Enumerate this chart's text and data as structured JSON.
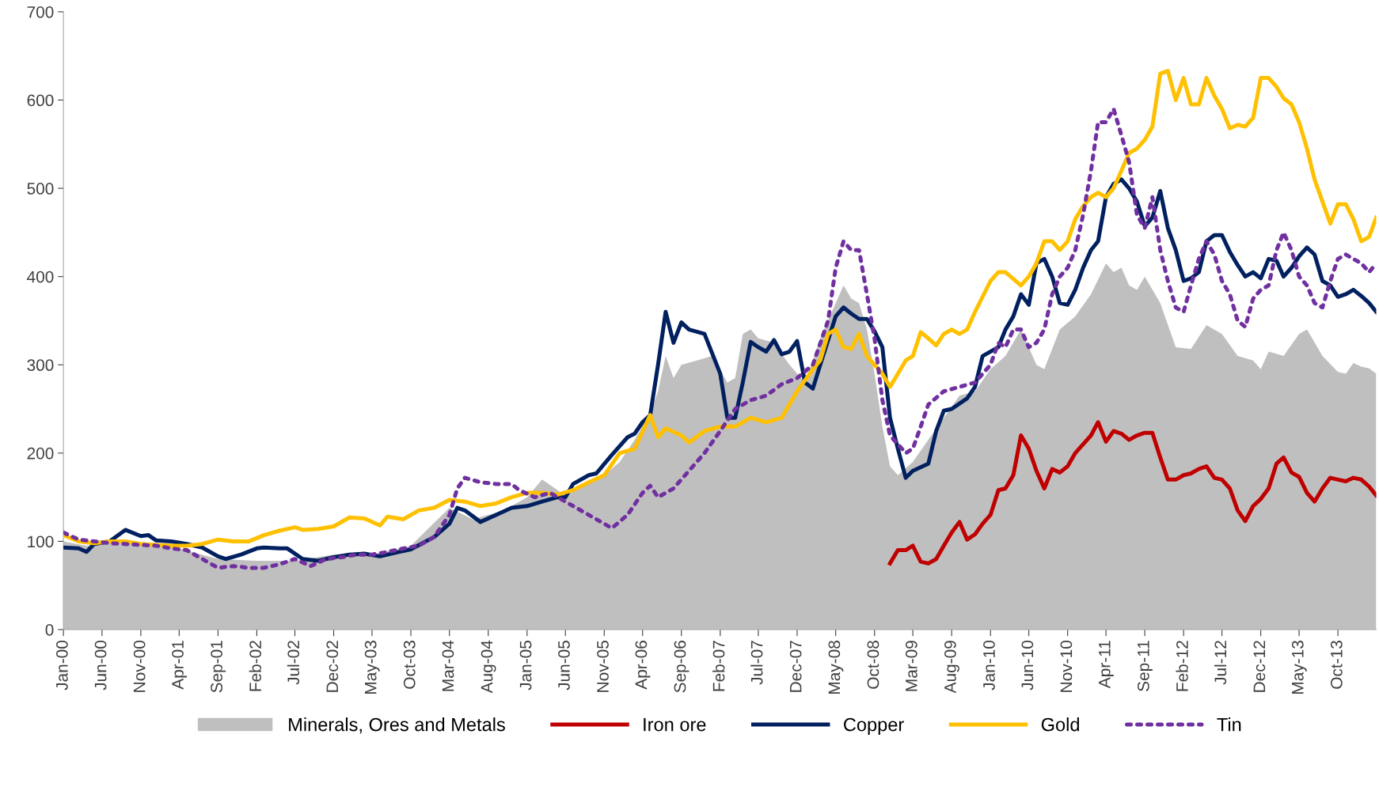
{
  "chart_data": {
    "type": "line",
    "xlim": [
      "2000-01",
      "2014-03"
    ],
    "ylim": [
      0,
      700
    ],
    "yticks": [
      0,
      100,
      200,
      300,
      400,
      500,
      600,
      700
    ],
    "xticks": [
      {
        "value": "2000-01",
        "label": "Jan-00"
      },
      {
        "value": "2000-06",
        "label": "Jun-00"
      },
      {
        "value": "2000-11",
        "label": "Nov-00"
      },
      {
        "value": "2001-04",
        "label": "Apr-01"
      },
      {
        "value": "2001-09",
        "label": "Sep-01"
      },
      {
        "value": "2002-02",
        "label": "Feb-02"
      },
      {
        "value": "2002-07",
        "label": "Jul-02"
      },
      {
        "value": "2002-12",
        "label": "Dec-02"
      },
      {
        "value": "2003-05",
        "label": "May-03"
      },
      {
        "value": "2003-10",
        "label": "Oct-03"
      },
      {
        "value": "2004-03",
        "label": "Mar-04"
      },
      {
        "value": "2004-08",
        "label": "Aug-04"
      },
      {
        "value": "2005-01",
        "label": "Jan-05"
      },
      {
        "value": "2005-06",
        "label": "Jun-05"
      },
      {
        "value": "2005-11",
        "label": "Nov-05"
      },
      {
        "value": "2006-04",
        "label": "Apr-06"
      },
      {
        "value": "2006-09",
        "label": "Sep-06"
      },
      {
        "value": "2007-02",
        "label": "Feb-07"
      },
      {
        "value": "2007-07",
        "label": "Jul-07"
      },
      {
        "value": "2007-12",
        "label": "Dec-07"
      },
      {
        "value": "2008-05",
        "label": "May-08"
      },
      {
        "value": "2008-10",
        "label": "Oct-08"
      },
      {
        "value": "2009-03",
        "label": "Mar-09"
      },
      {
        "value": "2009-08",
        "label": "Aug-09"
      },
      {
        "value": "2010-01",
        "label": "Jan-10"
      },
      {
        "value": "2010-06",
        "label": "Jun-10"
      },
      {
        "value": "2010-11",
        "label": "Nov-10"
      },
      {
        "value": "2011-04",
        "label": "Apr-11"
      },
      {
        "value": "2011-09",
        "label": "Sep-11"
      },
      {
        "value": "2012-02",
        "label": "Feb-12"
      },
      {
        "value": "2012-07",
        "label": "Jul-12"
      },
      {
        "value": "2012-12",
        "label": "Dec-12"
      },
      {
        "value": "2013-05",
        "label": "May-13"
      },
      {
        "value": "2013-10",
        "label": "Oct-13"
      }
    ],
    "grid": false,
    "legend": "bottom",
    "series": [
      {
        "name": "Minerals, Ores and Metals",
        "type": "area",
        "color": "#bfbfbf",
        "x": [
          "2000-01",
          "2000-04",
          "2000-07",
          "2000-11",
          "2001-04",
          "2001-09",
          "2002-02",
          "2002-07",
          "2002-12",
          "2003-05",
          "2003-10",
          "2004-03",
          "2004-06",
          "2004-10",
          "2005-01",
          "2005-03",
          "2005-06",
          "2005-09",
          "2005-11",
          "2006-01",
          "2006-03",
          "2006-05",
          "2006-06",
          "2006-07",
          "2006-08",
          "2006-09",
          "2006-11",
          "2007-01",
          "2007-03",
          "2007-04",
          "2007-05",
          "2007-06",
          "2007-07",
          "2007-09",
          "2007-11",
          "2008-01",
          "2008-03",
          "2008-05",
          "2008-06",
          "2008-07",
          "2008-08",
          "2008-09",
          "2008-10",
          "2008-11",
          "2008-12",
          "2009-01",
          "2009-03",
          "2009-05",
          "2009-07",
          "2009-09",
          "2009-11",
          "2010-01",
          "2010-03",
          "2010-05",
          "2010-07",
          "2010-08",
          "2010-10",
          "2010-12",
          "2011-02",
          "2011-04",
          "2011-05",
          "2011-06",
          "2011-07",
          "2011-08",
          "2011-09",
          "2011-11",
          "2012-01",
          "2012-03",
          "2012-05",
          "2012-07",
          "2012-09",
          "2012-11",
          "2012-12",
          "2013-01",
          "2013-03",
          "2013-05",
          "2013-06",
          "2013-08",
          "2013-10",
          "2013-11",
          "2013-12",
          "2014-01",
          "2014-02",
          "2014-03"
        ],
        "values": [
          100,
          95,
          98,
          97,
          92,
          80,
          78,
          78,
          85,
          85,
          95,
          138,
          125,
          135,
          150,
          170,
          152,
          165,
          175,
          190,
          215,
          245,
          270,
          310,
          285,
          300,
          305,
          310,
          280,
          285,
          335,
          340,
          330,
          325,
          300,
          280,
          330,
          370,
          390,
          375,
          370,
          340,
          290,
          230,
          185,
          175,
          190,
          215,
          240,
          265,
          270,
          295,
          310,
          340,
          300,
          295,
          340,
          355,
          380,
          415,
          405,
          410,
          390,
          385,
          400,
          370,
          320,
          318,
          345,
          335,
          310,
          305,
          295,
          315,
          310,
          335,
          340,
          310,
          292,
          290,
          302,
          298,
          296,
          290
        ]
      },
      {
        "name": "Iron ore",
        "color": "#c00000",
        "line_style": "solid",
        "x": [
          "2008-12",
          "2009-01",
          "2009-02",
          "2009-03",
          "2009-04",
          "2009-05",
          "2009-06",
          "2009-07",
          "2009-08",
          "2009-09",
          "2009-10",
          "2009-11",
          "2009-12",
          "2010-01",
          "2010-02",
          "2010-03",
          "2010-04",
          "2010-05",
          "2010-06",
          "2010-07",
          "2010-08",
          "2010-09",
          "2010-10",
          "2010-11",
          "2010-12",
          "2011-01",
          "2011-02",
          "2011-03",
          "2011-04",
          "2011-05",
          "2011-06",
          "2011-07",
          "2011-08",
          "2011-09",
          "2011-10",
          "2011-11",
          "2011-12",
          "2012-01",
          "2012-02",
          "2012-03",
          "2012-04",
          "2012-05",
          "2012-06",
          "2012-07",
          "2012-08",
          "2012-09",
          "2012-10",
          "2012-11",
          "2012-12",
          "2013-01",
          "2013-02",
          "2013-03",
          "2013-04",
          "2013-05",
          "2013-06",
          "2013-07",
          "2013-08",
          "2013-09",
          "2013-10",
          "2013-11",
          "2013-12",
          "2014-01",
          "2014-02",
          "2014-03"
        ],
        "values": [
          75,
          90,
          90,
          95,
          77,
          75,
          80,
          95,
          110,
          122,
          102,
          108,
          120,
          130,
          158,
          160,
          175,
          220,
          205,
          180,
          160,
          182,
          178,
          185,
          200,
          210,
          220,
          235,
          213,
          225,
          222,
          215,
          220,
          223,
          223,
          195,
          170,
          170,
          175,
          177,
          182,
          185,
          172,
          170,
          160,
          135,
          123,
          140,
          148,
          160,
          188,
          195,
          178,
          173,
          155,
          145,
          160,
          172,
          170,
          168,
          172,
          170,
          162,
          152
        ]
      },
      {
        "name": "Copper",
        "color": "#002060",
        "line_style": "solid",
        "x": [
          "2000-01",
          "2000-03",
          "2000-04",
          "2000-05",
          "2000-07",
          "2000-09",
          "2000-11",
          "2000-12",
          "2001-01",
          "2001-03",
          "2001-05",
          "2001-07",
          "2001-09",
          "2001-10",
          "2001-12",
          "2002-02",
          "2002-03",
          "2002-05",
          "2002-06",
          "2002-08",
          "2002-10",
          "2002-12",
          "2003-02",
          "2003-04",
          "2003-06",
          "2003-08",
          "2003-10",
          "2004-01",
          "2004-03",
          "2004-04",
          "2004-05",
          "2004-07",
          "2004-09",
          "2004-11",
          "2005-01",
          "2005-03",
          "2005-05",
          "2005-06",
          "2005-07",
          "2005-09",
          "2005-10",
          "2005-12",
          "2006-02",
          "2006-03",
          "2006-04",
          "2006-05",
          "2006-06",
          "2006-07",
          "2006-08",
          "2006-09",
          "2006-10",
          "2006-12",
          "2007-02",
          "2007-03",
          "2007-04",
          "2007-05",
          "2007-06",
          "2007-07",
          "2007-08",
          "2007-09",
          "2007-10",
          "2007-11",
          "2007-12",
          "2008-01",
          "2008-02",
          "2008-03",
          "2008-05",
          "2008-06",
          "2008-07",
          "2008-08",
          "2008-09",
          "2008-10",
          "2008-11",
          "2008-12",
          "2009-01",
          "2009-02",
          "2009-03",
          "2009-05",
          "2009-06",
          "2009-07",
          "2009-08",
          "2009-10",
          "2009-11",
          "2009-12",
          "2010-02",
          "2010-03",
          "2010-04",
          "2010-05",
          "2010-06",
          "2010-07",
          "2010-08",
          "2010-09",
          "2010-10",
          "2010-11",
          "2010-12",
          "2011-01",
          "2011-02",
          "2011-03",
          "2011-04",
          "2011-05",
          "2011-06",
          "2011-07",
          "2011-08",
          "2011-09",
          "2011-10",
          "2011-11",
          "2011-12",
          "2012-01",
          "2012-02",
          "2012-03",
          "2012-04",
          "2012-05",
          "2012-06",
          "2012-07",
          "2012-08",
          "2012-09",
          "2012-10",
          "2012-11",
          "2012-12",
          "2013-01",
          "2013-02",
          "2013-03",
          "2013-04",
          "2013-05",
          "2013-06",
          "2013-07",
          "2013-08",
          "2013-09",
          "2013-10",
          "2013-11",
          "2013-12",
          "2014-01",
          "2014-02",
          "2014-03"
        ],
        "values": [
          93,
          92,
          88,
          97,
          100,
          113,
          106,
          107,
          101,
          100,
          97,
          93,
          83,
          80,
          85,
          92,
          93,
          92,
          92,
          80,
          78,
          82,
          85,
          86,
          83,
          87,
          91,
          105,
          120,
          138,
          135,
          122,
          130,
          138,
          140,
          145,
          150,
          150,
          165,
          175,
          177,
          198,
          218,
          222,
          235,
          243,
          300,
          360,
          325,
          348,
          340,
          335,
          290,
          240,
          240,
          280,
          326,
          320,
          315,
          328,
          312,
          315,
          327,
          280,
          273,
          300,
          355,
          365,
          358,
          352,
          352,
          338,
          320,
          240,
          205,
          172,
          180,
          188,
          225,
          248,
          250,
          262,
          275,
          310,
          320,
          340,
          355,
          380,
          368,
          415,
          420,
          400,
          370,
          368,
          385,
          410,
          430,
          440,
          490,
          505,
          510,
          500,
          485,
          457,
          467,
          497,
          455,
          430,
          395,
          398,
          405,
          440,
          447,
          447,
          428,
          413,
          400,
          405,
          398,
          420,
          418,
          400,
          410,
          423,
          433,
          425,
          395,
          390,
          377,
          380,
          385,
          378,
          370,
          360
        ]
      },
      {
        "name": "Gold",
        "color": "#ffc000",
        "line_style": "solid",
        "x": [
          "2000-01",
          "2000-03",
          "2000-05",
          "2000-07",
          "2000-09",
          "2000-11",
          "2001-01",
          "2001-03",
          "2001-05",
          "2001-07",
          "2001-09",
          "2001-11",
          "2002-01",
          "2002-03",
          "2002-05",
          "2002-07",
          "2002-08",
          "2002-10",
          "2002-12",
          "2003-02",
          "2003-04",
          "2003-06",
          "2003-07",
          "2003-09",
          "2003-11",
          "2004-01",
          "2004-03",
          "2004-05",
          "2004-07",
          "2004-09",
          "2004-11",
          "2005-01",
          "2005-03",
          "2005-05",
          "2005-07",
          "2005-09",
          "2005-11",
          "2006-01",
          "2006-03",
          "2006-05",
          "2006-06",
          "2006-07",
          "2006-09",
          "2006-10",
          "2006-12",
          "2007-02",
          "2007-04",
          "2007-06",
          "2007-08",
          "2007-10",
          "2007-12",
          "2008-02",
          "2008-03",
          "2008-04",
          "2008-05",
          "2008-06",
          "2008-07",
          "2008-08",
          "2008-09",
          "2008-10",
          "2008-11",
          "2008-12",
          "2009-01",
          "2009-02",
          "2009-03",
          "2009-04",
          "2009-05",
          "2009-06",
          "2009-07",
          "2009-08",
          "2009-09",
          "2009-10",
          "2009-11",
          "2010-01",
          "2010-02",
          "2010-03",
          "2010-05",
          "2010-06",
          "2010-07",
          "2010-08",
          "2010-09",
          "2010-10",
          "2010-11",
          "2010-12",
          "2011-01",
          "2011-02",
          "2011-03",
          "2011-04",
          "2011-05",
          "2011-06",
          "2011-07",
          "2011-08",
          "2011-09",
          "2011-10",
          "2011-11",
          "2011-12",
          "2012-01",
          "2012-02",
          "2012-03",
          "2012-04",
          "2012-05",
          "2012-06",
          "2012-07",
          "2012-08",
          "2012-09",
          "2012-10",
          "2012-11",
          "2012-12",
          "2013-01",
          "2013-02",
          "2013-03",
          "2013-04",
          "2013-05",
          "2013-06",
          "2013-07",
          "2013-08",
          "2013-09",
          "2013-10",
          "2013-11",
          "2013-12",
          "2014-01",
          "2014-02",
          "2014-03"
        ],
        "values": [
          107,
          100,
          98,
          100,
          100,
          97,
          96,
          95,
          95,
          97,
          102,
          100,
          100,
          107,
          112,
          116,
          113,
          114,
          117,
          127,
          126,
          118,
          128,
          125,
          135,
          138,
          147,
          145,
          140,
          143,
          150,
          155,
          155,
          153,
          158,
          167,
          175,
          200,
          205,
          243,
          218,
          228,
          220,
          212,
          225,
          230,
          230,
          240,
          235,
          240,
          270,
          295,
          305,
          335,
          340,
          320,
          318,
          335,
          310,
          300,
          290,
          275,
          290,
          305,
          310,
          337,
          330,
          322,
          335,
          340,
          335,
          340,
          360,
          395,
          405,
          405,
          390,
          400,
          415,
          440,
          440,
          430,
          440,
          465,
          480,
          490,
          495,
          490,
          500,
          520,
          540,
          545,
          555,
          570,
          630,
          633,
          600,
          625,
          595,
          595,
          625,
          605,
          590,
          568,
          572,
          570,
          580,
          625,
          625,
          615,
          602,
          595,
          575,
          545,
          510,
          485,
          460,
          482,
          482,
          465,
          440,
          445,
          467
        ]
      },
      {
        "name": "Tin",
        "color": "#7030a0",
        "line_style": "dotted",
        "x": [
          "2000-01",
          "2000-03",
          "2000-05",
          "2000-07",
          "2000-09",
          "2000-11",
          "2001-01",
          "2001-03",
          "2001-05",
          "2001-07",
          "2001-09",
          "2001-11",
          "2002-01",
          "2002-03",
          "2002-05",
          "2002-07",
          "2002-09",
          "2002-11",
          "2003-01",
          "2003-03",
          "2003-05",
          "2003-07",
          "2003-09",
          "2003-11",
          "2004-01",
          "2004-03",
          "2004-04",
          "2004-05",
          "2004-07",
          "2004-09",
          "2004-11",
          "2004-12",
          "2005-02",
          "2005-04",
          "2005-06",
          "2005-08",
          "2005-10",
          "2005-12",
          "2006-02",
          "2006-04",
          "2006-05",
          "2006-06",
          "2006-08",
          "2006-10",
          "2006-12",
          "2007-02",
          "2007-04",
          "2007-06",
          "2007-08",
          "2007-10",
          "2007-12",
          "2008-02",
          "2008-04",
          "2008-05",
          "2008-06",
          "2008-07",
          "2008-08",
          "2008-09",
          "2008-10",
          "2008-11",
          "2008-12",
          "2009-01",
          "2009-02",
          "2009-03",
          "2009-04",
          "2009-05",
          "2009-07",
          "2009-09",
          "2009-11",
          "2010-01",
          "2010-02",
          "2010-03",
          "2010-04",
          "2010-05",
          "2010-06",
          "2010-07",
          "2010-08",
          "2010-09",
          "2010-10",
          "2010-11",
          "2010-12",
          "2011-01",
          "2011-02",
          "2011-03",
          "2011-04",
          "2011-05",
          "2011-06",
          "2011-07",
          "2011-08",
          "2011-09",
          "2011-10",
          "2011-11",
          "2011-12",
          "2012-01",
          "2012-02",
          "2012-03",
          "2012-04",
          "2012-05",
          "2012-06",
          "2012-07",
          "2012-08",
          "2012-09",
          "2012-10",
          "2012-11",
          "2012-12",
          "2013-01",
          "2013-02",
          "2013-03",
          "2013-04",
          "2013-05",
          "2013-06",
          "2013-07",
          "2013-08",
          "2013-09",
          "2013-10",
          "2013-11",
          "2013-12",
          "2014-01",
          "2014-02",
          "2014-03"
        ],
        "values": [
          110,
          102,
          100,
          98,
          97,
          96,
          95,
          92,
          90,
          80,
          70,
          72,
          70,
          70,
          74,
          80,
          72,
          80,
          82,
          85,
          85,
          88,
          92,
          95,
          105,
          130,
          160,
          172,
          167,
          165,
          165,
          158,
          150,
          155,
          145,
          135,
          125,
          115,
          130,
          155,
          163,
          150,
          160,
          180,
          200,
          225,
          250,
          260,
          265,
          278,
          285,
          300,
          350,
          410,
          440,
          430,
          430,
          380,
          330,
          260,
          220,
          210,
          200,
          205,
          230,
          255,
          270,
          275,
          280,
          300,
          325,
          320,
          340,
          340,
          320,
          325,
          340,
          380,
          400,
          410,
          430,
          470,
          520,
          575,
          575,
          590,
          560,
          530,
          470,
          455,
          490,
          430,
          395,
          365,
          360,
          390,
          420,
          440,
          425,
          395,
          380,
          350,
          343,
          375,
          385,
          390,
          430,
          450,
          430,
          400,
          390,
          370,
          365,
          395,
          420,
          425,
          420,
          415,
          405,
          415
        ]
      }
    ]
  }
}
